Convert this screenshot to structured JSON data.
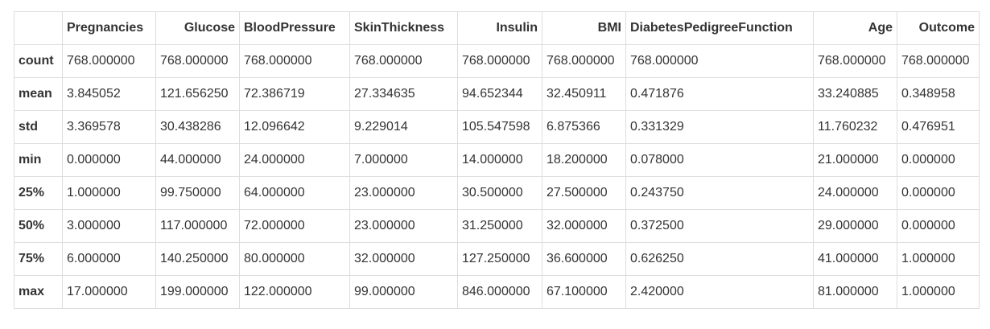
{
  "columns": [
    "",
    "Pregnancies",
    "Glucose",
    "BloodPressure",
    "SkinThickness",
    "Insulin",
    "BMI",
    "DiabetesPedigreeFunction",
    "Age",
    "Outcome"
  ],
  "rows": [
    {
      "label": "count",
      "values": [
        "768.000000",
        "768.000000",
        "768.000000",
        "768.000000",
        "768.000000",
        "768.000000",
        "768.000000",
        "768.000000",
        "768.000000"
      ]
    },
    {
      "label": "mean",
      "values": [
        "3.845052",
        "121.656250",
        "72.386719",
        "27.334635",
        "94.652344",
        "32.450911",
        "0.471876",
        "33.240885",
        "0.348958"
      ]
    },
    {
      "label": "std",
      "values": [
        "3.369578",
        "30.438286",
        "12.096642",
        "9.229014",
        "105.547598",
        "6.875366",
        "0.331329",
        "11.760232",
        "0.476951"
      ]
    },
    {
      "label": "min",
      "values": [
        "0.000000",
        "44.000000",
        "24.000000",
        "7.000000",
        "14.000000",
        "18.200000",
        "0.078000",
        "21.000000",
        "0.000000"
      ]
    },
    {
      "label": "25%",
      "values": [
        "1.000000",
        "99.750000",
        "64.000000",
        "23.000000",
        "30.500000",
        "27.500000",
        "0.243750",
        "24.000000",
        "0.000000"
      ]
    },
    {
      "label": "50%",
      "values": [
        "3.000000",
        "117.000000",
        "72.000000",
        "23.000000",
        "31.250000",
        "32.000000",
        "0.372500",
        "29.000000",
        "0.000000"
      ]
    },
    {
      "label": "75%",
      "values": [
        "6.000000",
        "140.250000",
        "80.000000",
        "32.000000",
        "127.250000",
        "36.600000",
        "0.626250",
        "41.000000",
        "1.000000"
      ]
    },
    {
      "label": "max",
      "values": [
        "17.000000",
        "199.000000",
        "122.000000",
        "99.000000",
        "846.000000",
        "67.100000",
        "2.420000",
        "81.000000",
        "1.000000"
      ]
    }
  ]
}
